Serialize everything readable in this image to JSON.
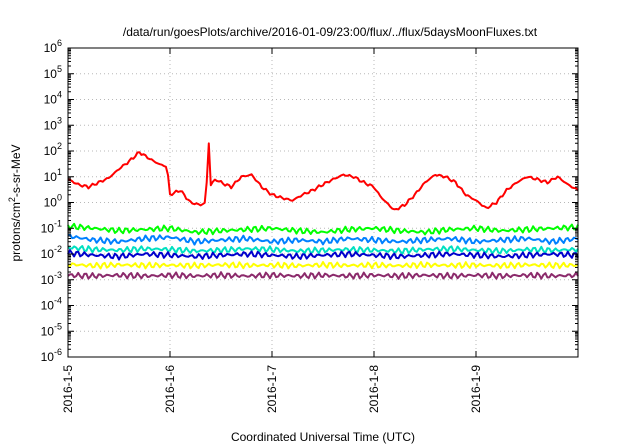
{
  "chart_data": {
    "type": "line",
    "title": "/data/run/goesPlots/archive/2016-01-09/23:00/flux/../flux/5daysMoonFluxes.txt",
    "xlabel": "Coordinated Universal Time (UTC)",
    "ylabel_base": "protons/cm",
    "ylabel_sup": "2",
    "ylabel_rest": "-s-sr-MeV",
    "y_scale": "log",
    "ylim_exp": [
      -6,
      6
    ],
    "xlim": [
      "2016-01-05",
      "2016-01-10"
    ],
    "x_ticks": [
      "2016-1-5",
      "2016-1-6",
      "2016-1-7",
      "2016-1-8",
      "2016-1-9"
    ],
    "y_tick_exponents": [
      "-6",
      "-5",
      "-4",
      "-3",
      "-2",
      "-1",
      "0",
      "1",
      "2",
      "3",
      "4",
      "5",
      "6"
    ],
    "y_tick_base": "10",
    "grid": true,
    "series": [
      {
        "color": "#ff0000",
        "x_days": [
          0.0,
          0.1,
          0.2,
          0.3,
          0.4,
          0.5,
          0.6,
          0.7,
          0.8,
          0.9,
          0.97,
          1.0,
          1.1,
          1.2,
          1.3,
          1.35,
          1.38,
          1.4,
          1.45,
          1.5,
          1.6,
          1.7,
          1.8,
          1.9,
          2.0,
          2.1,
          2.2,
          2.3,
          2.4,
          2.5,
          2.6,
          2.7,
          2.8,
          2.9,
          3.0,
          3.05,
          3.1,
          3.2,
          3.3,
          3.4,
          3.5,
          3.6,
          3.7,
          3.8,
          3.9,
          4.0,
          4.1,
          4.2,
          4.3,
          4.4,
          4.5,
          4.6,
          4.7,
          4.8,
          4.9,
          5.0
        ],
        "y": [
          8,
          5,
          4,
          6,
          9,
          20,
          40,
          90,
          50,
          30,
          25,
          2,
          3,
          1,
          0.8,
          1,
          200,
          5,
          8,
          6,
          4,
          10,
          12,
          4,
          2,
          1.5,
          1.2,
          2,
          3,
          5,
          8,
          12,
          10,
          6,
          4,
          2,
          1.2,
          0.5,
          0.8,
          2,
          6,
          12,
          10,
          6,
          2,
          1.2,
          0.6,
          1,
          3,
          6,
          10,
          8,
          6,
          10,
          5,
          3
        ]
      },
      {
        "color": "#00ff00",
        "x_days": [
          0.0,
          0.25,
          0.5,
          0.75,
          1.0,
          1.25,
          1.5,
          1.75,
          2.0,
          2.25,
          2.5,
          2.75,
          3.0,
          3.25,
          3.5,
          3.75,
          4.0,
          4.25,
          4.5,
          4.75,
          5.0
        ],
        "y": [
          0.12,
          0.1,
          0.08,
          0.09,
          0.1,
          0.07,
          0.08,
          0.09,
          0.1,
          0.08,
          0.07,
          0.09,
          0.1,
          0.08,
          0.07,
          0.09,
          0.1,
          0.08,
          0.09,
          0.1,
          0.11
        ]
      },
      {
        "color": "#0080ff",
        "x_days": [
          0.0,
          0.25,
          0.5,
          0.75,
          1.0,
          1.25,
          1.5,
          1.75,
          2.0,
          2.25,
          2.5,
          2.75,
          3.0,
          3.25,
          3.5,
          3.75,
          4.0,
          4.25,
          4.5,
          4.75,
          5.0
        ],
        "y": [
          0.05,
          0.035,
          0.03,
          0.04,
          0.045,
          0.03,
          0.035,
          0.04,
          0.03,
          0.035,
          0.03,
          0.04,
          0.035,
          0.03,
          0.035,
          0.04,
          0.03,
          0.035,
          0.04,
          0.03,
          0.04
        ]
      },
      {
        "color": "#00e0c0",
        "x_days": [
          0.0,
          0.25,
          0.5,
          0.75,
          1.0,
          1.25,
          1.5,
          1.75,
          2.0,
          2.25,
          2.5,
          2.75,
          3.0,
          3.25,
          3.5,
          3.75,
          4.0,
          4.25,
          4.5,
          4.75,
          5.0
        ],
        "y": [
          0.018,
          0.015,
          0.014,
          0.016,
          0.015,
          0.013,
          0.014,
          0.016,
          0.015,
          0.013,
          0.014,
          0.015,
          0.014,
          0.013,
          0.015,
          0.016,
          0.014,
          0.013,
          0.015,
          0.014,
          0.015
        ]
      },
      {
        "color": "#0000cc",
        "x_days": [
          0.0,
          0.25,
          0.5,
          0.75,
          1.0,
          1.25,
          1.5,
          1.75,
          2.0,
          2.25,
          2.5,
          2.75,
          3.0,
          3.25,
          3.5,
          3.75,
          4.0,
          4.25,
          4.5,
          4.75,
          5.0
        ],
        "y": [
          0.011,
          0.009,
          0.008,
          0.01,
          0.009,
          0.008,
          0.009,
          0.01,
          0.009,
          0.008,
          0.009,
          0.01,
          0.009,
          0.008,
          0.009,
          0.01,
          0.009,
          0.008,
          0.009,
          0.01,
          0.009
        ]
      },
      {
        "color": "#ffff00",
        "x_days": [
          0.0,
          0.25,
          0.5,
          0.75,
          1.0,
          1.25,
          1.5,
          1.75,
          2.0,
          2.25,
          2.5,
          2.75,
          3.0,
          3.25,
          3.5,
          3.75,
          4.0,
          4.25,
          4.5,
          4.75,
          5.0
        ],
        "y": [
          0.004,
          0.0035,
          0.0038,
          0.0036,
          0.0037,
          0.0035,
          0.0038,
          0.0036,
          0.0037,
          0.0035,
          0.0038,
          0.0036,
          0.0037,
          0.0035,
          0.0038,
          0.0036,
          0.0037,
          0.0035,
          0.0038,
          0.0036,
          0.0037
        ]
      },
      {
        "color": "#8b2a6b",
        "x_days": [
          0.0,
          0.25,
          0.5,
          0.75,
          1.0,
          1.25,
          1.5,
          1.75,
          2.0,
          2.25,
          2.5,
          2.75,
          3.0,
          3.25,
          3.5,
          3.75,
          4.0,
          4.25,
          4.5,
          4.75,
          5.0
        ],
        "y": [
          0.0015,
          0.0014,
          0.0015,
          0.0014,
          0.0015,
          0.0014,
          0.0015,
          0.0014,
          0.0015,
          0.0014,
          0.0015,
          0.0014,
          0.0015,
          0.0014,
          0.0015,
          0.0014,
          0.0015,
          0.0014,
          0.0015,
          0.0014,
          0.0015
        ]
      }
    ]
  }
}
